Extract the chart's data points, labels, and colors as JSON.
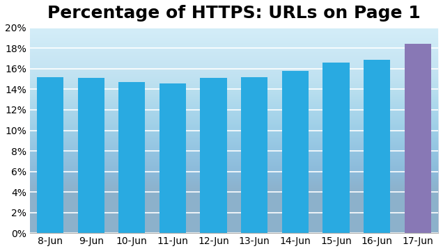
{
  "title": "Percentage of HTTPS: URLs on Page 1",
  "categories": [
    "8-Jun",
    "9-Jun",
    "10-Jun",
    "11-Jun",
    "12-Jun",
    "13-Jun",
    "14-Jun",
    "15-Jun",
    "16-Jun",
    "17-Jun"
  ],
  "values": [
    15.2,
    15.1,
    14.7,
    14.6,
    15.1,
    15.2,
    15.8,
    16.6,
    16.9,
    18.4
  ],
  "bar_colors": [
    "#29aae1",
    "#29aae1",
    "#29aae1",
    "#29aae1",
    "#29aae1",
    "#29aae1",
    "#29aae1",
    "#29aae1",
    "#29aae1",
    "#8878b5"
  ],
  "ylim": [
    0,
    20
  ],
  "ytick_step": 2,
  "bg_top_color": "#d6eef8",
  "bg_bottom_color": "#b8dff0",
  "grid_color": "#ffffff",
  "title_fontsize": 18,
  "title_fontweight": "bold",
  "tick_fontsize": 10,
  "bar_width": 0.65
}
